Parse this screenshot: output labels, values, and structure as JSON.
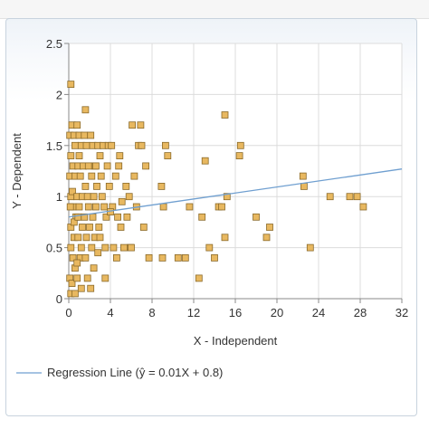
{
  "chart_data": {
    "type": "scatter",
    "xlabel": "X - Independent",
    "ylabel": "Y - Dependent",
    "xlim": [
      0,
      32
    ],
    "ylim": [
      0,
      2.5
    ],
    "x_ticks": [
      "0",
      "4",
      "8",
      "12",
      "16",
      "20",
      "24",
      "28",
      "32"
    ],
    "y_ticks": [
      "0",
      "0.5",
      "1",
      "1.5",
      "2",
      "2.5"
    ],
    "grid": true,
    "marker_color": "#e8b860",
    "marker_edge": "#8a6a2a",
    "regression": {
      "label": "Regression Line (ŷ = 0.01X + 0.8)",
      "intercept": 0.8,
      "slope": 0.0147,
      "color": "#6f9fd0"
    },
    "points": [
      [
        0.2,
        2.1
      ],
      [
        0.1,
        1.6
      ],
      [
        0.3,
        1.7
      ],
      [
        0.5,
        1.6
      ],
      [
        0.6,
        1.5
      ],
      [
        0.2,
        1.4
      ],
      [
        0.4,
        1.3
      ],
      [
        0.1,
        1.2
      ],
      [
        0.6,
        1.2
      ],
      [
        0.2,
        1.0
      ],
      [
        0.4,
        0.9
      ],
      [
        0.7,
        0.8
      ],
      [
        0.2,
        0.7
      ],
      [
        0.5,
        0.6
      ],
      [
        0.2,
        0.5
      ],
      [
        0.4,
        0.4
      ],
      [
        0.6,
        0.3
      ],
      [
        0.1,
        0.2
      ],
      [
        0.3,
        0.15
      ],
      [
        0.2,
        0.05
      ],
      [
        0.6,
        0.05
      ],
      [
        0.15,
        0.9
      ],
      [
        0.35,
        1.05
      ],
      [
        0.5,
        0.75
      ],
      [
        0.8,
        1.7
      ],
      [
        1.0,
        1.6
      ],
      [
        1.2,
        1.5
      ],
      [
        0.9,
        1.3
      ],
      [
        1.1,
        1.2
      ],
      [
        0.8,
        1.0
      ],
      [
        1.0,
        0.9
      ],
      [
        1.3,
        0.7
      ],
      [
        0.9,
        0.6
      ],
      [
        1.1,
        0.4
      ],
      [
        0.8,
        0.2
      ],
      [
        1.2,
        0.1
      ],
      [
        1.0,
        1.4
      ],
      [
        1.3,
        1.0
      ],
      [
        0.9,
        0.8
      ],
      [
        1.2,
        0.5
      ],
      [
        1.4,
        1.3
      ],
      [
        0.8,
        0.35
      ],
      [
        1.5,
        1.6
      ],
      [
        1.7,
        1.5
      ],
      [
        1.9,
        1.3
      ],
      [
        1.6,
        1.1
      ],
      [
        1.8,
        1.0
      ],
      [
        1.5,
        0.8
      ],
      [
        1.7,
        0.6
      ],
      [
        1.6,
        0.4
      ],
      [
        1.8,
        0.2
      ],
      [
        1.9,
        0.9
      ],
      [
        1.6,
        1.85
      ],
      [
        2.0,
        0.7
      ],
      [
        2.1,
        1.6
      ],
      [
        2.3,
        1.5
      ],
      [
        2.5,
        1.3
      ],
      [
        2.2,
        1.2
      ],
      [
        2.4,
        1.0
      ],
      [
        2.6,
        0.9
      ],
      [
        2.3,
        0.8
      ],
      [
        2.5,
        0.6
      ],
      [
        2.2,
        0.5
      ],
      [
        2.4,
        0.3
      ],
      [
        2.6,
        1.3
      ],
      [
        2.8,
        1.5
      ],
      [
        2.7,
        1.1
      ],
      [
        2.9,
        0.7
      ],
      [
        2.1,
        0.1
      ],
      [
        2.8,
        0.45
      ],
      [
        3.0,
        1.4
      ],
      [
        3.1,
        1.2
      ],
      [
        3.3,
        1.5
      ],
      [
        3.2,
        1.0
      ],
      [
        3.4,
        0.9
      ],
      [
        3.5,
        0.5
      ],
      [
        3.6,
        0.8
      ],
      [
        3.7,
        1.3
      ],
      [
        3.8,
        1.5
      ],
      [
        3.9,
        1.1
      ],
      [
        3.5,
        0.2
      ],
      [
        3.0,
        0.6
      ],
      [
        4.1,
        1.5
      ],
      [
        4.2,
        0.9
      ],
      [
        4.0,
        0.85
      ],
      [
        4.3,
        0.5
      ],
      [
        4.5,
        1.2
      ],
      [
        4.7,
        0.8
      ],
      [
        4.8,
        1.3
      ],
      [
        4.9,
        1.4
      ],
      [
        4.6,
        0.4
      ],
      [
        5.0,
        0.7
      ],
      [
        5.1,
        0.95
      ],
      [
        5.3,
        0.5
      ],
      [
        5.5,
        1.1
      ],
      [
        5.6,
        0.8
      ],
      [
        5.8,
        1.0
      ],
      [
        6.1,
        1.7
      ],
      [
        6.3,
        1.2
      ],
      [
        6.5,
        0.9
      ],
      [
        6.7,
        1.5
      ],
      [
        6.9,
        1.7
      ],
      [
        7.0,
        1.5
      ],
      [
        7.2,
        0.7
      ],
      [
        7.4,
        1.3
      ],
      [
        5.9,
        0.5
      ],
      [
        6.0,
        0.5
      ],
      [
        7.7,
        0.4
      ],
      [
        8.9,
        1.1
      ],
      [
        9.1,
        0.9
      ],
      [
        9.3,
        1.5
      ],
      [
        9.5,
        1.4
      ],
      [
        9.0,
        0.4
      ],
      [
        10.5,
        0.4
      ],
      [
        11.2,
        0.4
      ],
      [
        11.6,
        0.9
      ],
      [
        12.5,
        0.2
      ],
      [
        12.8,
        0.8
      ],
      [
        13.1,
        1.35
      ],
      [
        13.5,
        0.5
      ],
      [
        14.0,
        0.4
      ],
      [
        14.4,
        0.9
      ],
      [
        14.7,
        0.9
      ],
      [
        15.0,
        1.8
      ],
      [
        15.2,
        1.0
      ],
      [
        15.0,
        0.6
      ],
      [
        16.5,
        1.5
      ],
      [
        16.4,
        1.4
      ],
      [
        18.0,
        0.8
      ],
      [
        19.0,
        0.6
      ],
      [
        19.3,
        0.7
      ],
      [
        22.5,
        1.2
      ],
      [
        22.6,
        1.1
      ],
      [
        23.2,
        0.5
      ],
      [
        25.1,
        1.0
      ],
      [
        27.0,
        1.0
      ],
      [
        27.7,
        1.0
      ],
      [
        28.3,
        0.9
      ]
    ]
  },
  "colors": {
    "grid": "#dcdcdc",
    "axis": "#888888",
    "plot_bg": "#ffffff"
  }
}
